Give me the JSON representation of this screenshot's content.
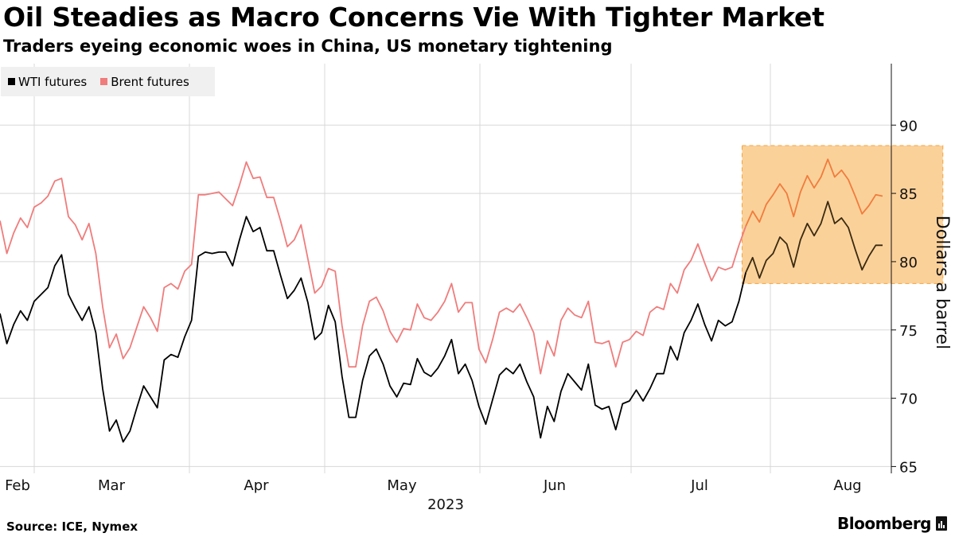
{
  "header": {
    "title": "Oil Steadies as Macro Concerns Vie With Tighter Market",
    "subtitle": "Traders eyeing economic woes in China, US monetary tightening"
  },
  "footer": {
    "source": "Source: ICE, Nymex",
    "brand": "Bloomberg"
  },
  "colors": {
    "wti": "#000000",
    "brent": "#f07c7c",
    "highlight_fill": "#fbd19a",
    "highlight_border": "#f2a33c",
    "highlight_line": "#3a2a10",
    "highlight_brent_line": "#f07c3c",
    "legend_bg": "#f0f0f0",
    "grid": "#d8d8d8"
  },
  "chart_data": {
    "type": "line",
    "title": "Oil Steadies as Macro Concerns Vie With Tighter Market",
    "subtitle": "Traders eyeing economic woes in China, US monetary tightening",
    "ylabel": "Dollars a barrel",
    "xlabel": "2023",
    "ylim": [
      64.5,
      94.5
    ],
    "yticks": [
      65,
      70,
      75,
      80,
      85,
      90
    ],
    "x_ticks": [
      "Feb",
      "Mar",
      "Apr",
      "May",
      "Jun",
      "Jul",
      "Aug"
    ],
    "x_year": "2023",
    "grid": true,
    "legend_position": "top-left",
    "highlight": {
      "from_index": 108,
      "to_index": 137,
      "y_from": 78.4,
      "y_to": 88.5
    },
    "series": [
      {
        "name": "WTI futures",
        "values": [
          76.2,
          74.0,
          75.4,
          76.4,
          75.7,
          77.1,
          77.6,
          78.1,
          79.7,
          80.5,
          77.6,
          76.6,
          75.7,
          76.7,
          74.8,
          70.7,
          67.6,
          68.4,
          66.8,
          67.6,
          69.3,
          70.9,
          70.1,
          69.3,
          72.8,
          73.2,
          73.0,
          74.5,
          75.7,
          80.4,
          80.7,
          80.6,
          80.7,
          80.7,
          79.7,
          81.6,
          83.3,
          82.2,
          82.5,
          80.8,
          80.8,
          79.0,
          77.3,
          77.9,
          78.8,
          77.0,
          74.3,
          74.8,
          76.8,
          75.6,
          71.6,
          68.6,
          68.6,
          71.3,
          73.1,
          73.6,
          72.5,
          70.9,
          70.1,
          71.1,
          71.0,
          72.9,
          71.9,
          71.6,
          72.2,
          73.1,
          74.3,
          71.8,
          72.5,
          71.3,
          69.4,
          68.1,
          69.9,
          71.7,
          72.2,
          71.8,
          72.5,
          71.2,
          70.1,
          67.1,
          69.4,
          68.3,
          70.5,
          71.8,
          71.2,
          70.6,
          72.5,
          69.5,
          69.2,
          69.4,
          67.7,
          69.6,
          69.8,
          70.6,
          69.8,
          70.7,
          71.8,
          71.8,
          73.8,
          72.8,
          74.8,
          75.7,
          76.9,
          75.4,
          74.2,
          75.7,
          75.3,
          75.6,
          77.1,
          79.2,
          80.3,
          78.8,
          80.1,
          80.6,
          81.8,
          81.3,
          79.6,
          81.6,
          82.8,
          81.9,
          82.8,
          84.4,
          82.8,
          83.2,
          82.5,
          80.9,
          79.4,
          80.4,
          81.2,
          81.2
        ],
        "highlight_color": "#3a2a10"
      },
      {
        "name": "Brent futures",
        "values": [
          83.0,
          80.6,
          82.1,
          83.2,
          82.5,
          84.0,
          84.3,
          84.8,
          85.9,
          86.1,
          83.3,
          82.7,
          81.6,
          82.8,
          80.6,
          76.7,
          73.7,
          74.7,
          72.9,
          73.7,
          75.2,
          76.7,
          75.9,
          74.9,
          78.1,
          78.4,
          78.0,
          79.3,
          79.8,
          84.9,
          84.9,
          85.0,
          85.1,
          84.6,
          84.1,
          85.6,
          87.3,
          86.1,
          86.2,
          84.7,
          84.7,
          83.0,
          81.1,
          81.6,
          82.7,
          80.2,
          77.7,
          78.2,
          79.5,
          79.3,
          75.3,
          72.3,
          72.3,
          75.3,
          77.1,
          77.4,
          76.4,
          74.9,
          74.1,
          75.1,
          75.0,
          76.9,
          75.9,
          75.7,
          76.3,
          77.1,
          78.4,
          76.3,
          77.0,
          77.0,
          73.6,
          72.6,
          74.3,
          76.3,
          76.6,
          76.3,
          76.9,
          75.9,
          74.8,
          71.8,
          74.2,
          73.1,
          75.7,
          76.6,
          76.1,
          75.9,
          77.1,
          74.1,
          74.0,
          74.2,
          72.3,
          74.1,
          74.3,
          74.9,
          74.6,
          76.3,
          76.7,
          76.5,
          78.4,
          77.7,
          79.4,
          80.1,
          81.3,
          79.9,
          78.6,
          79.6,
          79.4,
          79.6,
          81.2,
          82.6,
          83.7,
          82.9,
          84.2,
          84.9,
          85.7,
          85.0,
          83.3,
          85.1,
          86.3,
          85.4,
          86.2,
          87.5,
          86.2,
          86.7,
          86.0,
          84.8,
          83.5,
          84.1,
          84.9,
          84.8
        ],
        "highlight_color": "#f07c3c"
      }
    ]
  }
}
